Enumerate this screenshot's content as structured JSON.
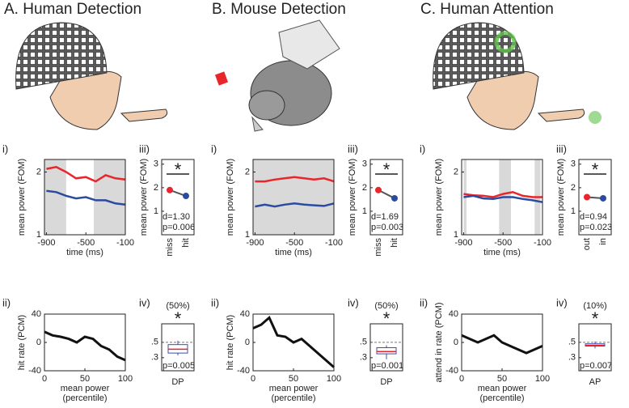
{
  "panels": [
    {
      "title": "A. Human Detection"
    },
    {
      "title": "B. Mouse Detection"
    },
    {
      "title": "C. Human Attention"
    }
  ],
  "chart_data": [
    {
      "type": "line",
      "label": "i)",
      "x": [
        -900,
        -800,
        -700,
        -600,
        -500,
        -400,
        -300,
        -200,
        -100
      ],
      "xlim": [
        -920,
        -100
      ],
      "xticks": [
        -900,
        -500,
        -100
      ],
      "ylim": [
        1,
        2.2
      ],
      "yticks": [
        1,
        2
      ],
      "xlabel": "time (ms)",
      "ylabel": "mean power (FOM)",
      "highlight_ranges": [
        [
          -920,
          -700
        ],
        [
          -420,
          -100
        ]
      ],
      "highlight_color": "#d9d9d9",
      "series": [
        {
          "color": "#e8262b",
          "values": [
            2.05,
            2.08,
            2.0,
            1.9,
            1.92,
            1.85,
            1.95,
            1.9,
            1.88
          ]
        },
        {
          "color": "#2b4ba0",
          "values": [
            1.7,
            1.68,
            1.62,
            1.58,
            1.6,
            1.55,
            1.55,
            1.5,
            1.48
          ]
        }
      ]
    },
    {
      "type": "dot",
      "label": "iii)",
      "categories": [
        "miss",
        "hit"
      ],
      "values": [
        1.9,
        1.65
      ],
      "colors": [
        "#e8262b",
        "#2b4ba0"
      ],
      "ylim": [
        0,
        3.2
      ],
      "yticks": [
        1,
        2,
        3
      ],
      "ylabel": "mean power (FOM)",
      "star": "*",
      "effect": "d=1.30",
      "p": "p=0.006"
    },
    {
      "type": "line",
      "label": "ii)",
      "x": [
        0,
        10,
        20,
        30,
        40,
        50,
        60,
        70,
        80,
        90,
        100
      ],
      "xlim": [
        0,
        100
      ],
      "xticks": [
        0,
        50,
        100
      ],
      "ylim": [
        -40,
        40
      ],
      "yticks": [
        -40,
        0,
        40
      ],
      "xlabel": "mean power",
      "xlabel2": "(percentile)",
      "ylabel": "hit rate (PCM)",
      "series": [
        {
          "color": "#111111",
          "values": [
            15,
            10,
            8,
            5,
            0,
            8,
            5,
            -5,
            -10,
            -20,
            -25
          ]
        }
      ]
    },
    {
      "type": "box",
      "label": "iv)",
      "header": "(50%)",
      "star": "*",
      "category": "DP",
      "p": "p=0.005",
      "ylim": [
        0.13,
        0.74
      ],
      "yticks": [
        {
          "value": 0.3,
          "label": ".3"
        },
        {
          "value": 0.5,
          "label": ".5"
        }
      ],
      "refline": 0.5,
      "color": "#3a4fa8",
      "box": {
        "whislo": 0.33,
        "q1": 0.36,
        "med": 0.41,
        "q3": 0.47,
        "whishi": 0.52
      }
    },
    {
      "type": "line",
      "label": "i)",
      "x": [
        -900,
        -800,
        -700,
        -600,
        -500,
        -400,
        -300,
        -200,
        -100
      ],
      "xlim": [
        -920,
        -100
      ],
      "xticks": [
        -900,
        -500,
        -100
      ],
      "ylim": [
        1,
        2.2
      ],
      "yticks": [
        1,
        2
      ],
      "xlabel": "time (ms)",
      "ylabel": "mean power (FOM)",
      "highlight_ranges": [
        [
          -920,
          -100
        ]
      ],
      "highlight_color": "#d9d9d9",
      "series": [
        {
          "color": "#e8262b",
          "values": [
            1.85,
            1.85,
            1.88,
            1.9,
            1.92,
            1.9,
            1.88,
            1.9,
            1.85
          ]
        },
        {
          "color": "#2b4ba0",
          "values": [
            1.45,
            1.48,
            1.45,
            1.48,
            1.5,
            1.48,
            1.47,
            1.46,
            1.5
          ]
        }
      ]
    },
    {
      "type": "dot",
      "label": "iii)",
      "categories": [
        "miss",
        "hit"
      ],
      "values": [
        1.9,
        1.55
      ],
      "colors": [
        "#e8262b",
        "#2b4ba0"
      ],
      "ylim": [
        0,
        3.2
      ],
      "yticks": [
        1,
        2,
        3
      ],
      "ylabel": "mean power (FOM)",
      "star": "*",
      "effect": "d=1.69",
      "p": "p=0.003"
    },
    {
      "type": "line",
      "label": "ii)",
      "x": [
        0,
        10,
        20,
        30,
        40,
        50,
        60,
        70,
        80,
        90,
        100
      ],
      "xlim": [
        0,
        100
      ],
      "xticks": [
        0,
        50,
        100
      ],
      "ylim": [
        -40,
        40
      ],
      "yticks": [
        -40,
        0,
        40
      ],
      "xlabel": "mean power",
      "xlabel2": "(percentile)",
      "ylabel": "hit rate (PCM)",
      "series": [
        {
          "color": "#111111",
          "values": [
            20,
            25,
            35,
            10,
            8,
            0,
            5,
            -5,
            -15,
            -25,
            -35
          ]
        }
      ]
    },
    {
      "type": "box",
      "label": "iv)",
      "header": "(50%)",
      "star": "*",
      "category": "DP",
      "p": "p=0.001",
      "ylim": [
        0.13,
        0.74
      ],
      "yticks": [
        {
          "value": 0.3,
          "label": ".3"
        },
        {
          "value": 0.5,
          "label": ".5"
        }
      ],
      "refline": 0.5,
      "color": "#3a4fa8",
      "box": {
        "whislo": 0.28,
        "q1": 0.35,
        "med": 0.38,
        "q3": 0.43,
        "whishi": 0.46
      }
    },
    {
      "type": "line",
      "label": "i)",
      "x": [
        -900,
        -800,
        -700,
        -600,
        -500,
        -400,
        -300,
        -200,
        -100
      ],
      "xlim": [
        -920,
        -100
      ],
      "xticks": [
        -900,
        -500,
        -100
      ],
      "ylim": [
        1,
        2.2
      ],
      "yticks": [
        1,
        2
      ],
      "xlabel": "time (ms)",
      "ylabel": "mean power (FOM)",
      "highlight_ranges": [
        [
          -900,
          -870
        ],
        [
          -540,
          -420
        ],
        [
          -180,
          -120
        ]
      ],
      "highlight_color": "#d9d9d9",
      "series": [
        {
          "color": "#e8262b",
          "values": [
            1.65,
            1.63,
            1.62,
            1.6,
            1.65,
            1.68,
            1.62,
            1.6,
            1.6
          ]
        },
        {
          "color": "#2b4ba0",
          "values": [
            1.6,
            1.62,
            1.58,
            1.57,
            1.6,
            1.6,
            1.57,
            1.55,
            1.52
          ]
        }
      ]
    },
    {
      "type": "dot",
      "label": "iii)",
      "categories": [
        "out",
        "in"
      ],
      "values": [
        1.6,
        1.55
      ],
      "colors": [
        "#e8262b",
        "#2b4ba0"
      ],
      "ylim": [
        0,
        3.2
      ],
      "yticks": [
        1,
        2,
        3
      ],
      "ylabel": "mean power (FOM)",
      "star": "*",
      "effect": "d=0.94",
      "p": "p=0.023"
    },
    {
      "type": "line",
      "label": "ii)",
      "x": [
        0,
        10,
        20,
        30,
        40,
        50,
        60,
        70,
        80,
        90,
        100
      ],
      "xlim": [
        0,
        100
      ],
      "xticks": [
        0,
        50,
        100
      ],
      "ylim": [
        -40,
        40
      ],
      "yticks": [
        -40,
        0,
        40
      ],
      "xlabel": "mean power",
      "xlabel2": "(percentile)",
      "ylabel": "attend in rate (PCM)",
      "series": [
        {
          "color": "#111111",
          "values": [
            10,
            5,
            0,
            5,
            10,
            0,
            -5,
            -10,
            -15,
            -10,
            -5
          ]
        }
      ]
    },
    {
      "type": "box",
      "label": "iv)",
      "header": "(10%)",
      "star": "*",
      "category": "AP",
      "p": "p=0.007",
      "ylim": [
        0.13,
        0.74
      ],
      "yticks": [
        {
          "value": 0.3,
          "label": ".3"
        },
        {
          "value": 0.5,
          "label": ".5"
        }
      ],
      "refline": 0.5,
      "color": "#3a4fa8",
      "box": {
        "whislo": 0.42,
        "q1": 0.45,
        "med": 0.46,
        "q3": 0.48,
        "whishi": 0.51
      }
    }
  ]
}
